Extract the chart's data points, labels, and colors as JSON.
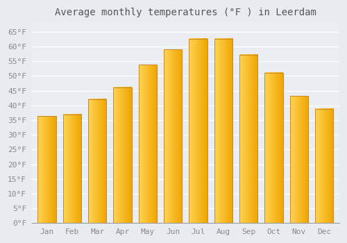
{
  "title": "Average monthly temperatures (°F ) in Leerdam",
  "months": [
    "Jan",
    "Feb",
    "Mar",
    "Apr",
    "May",
    "Jun",
    "Jul",
    "Aug",
    "Sep",
    "Oct",
    "Nov",
    "Dec"
  ],
  "values": [
    36.3,
    37.0,
    42.1,
    46.2,
    53.8,
    59.0,
    62.6,
    62.6,
    57.2,
    51.1,
    43.2,
    38.8
  ],
  "bar_color_left": "#FFD454",
  "bar_color_right": "#F0A500",
  "bar_edge_color": "#C8882A",
  "background_color": "#E8ECF0",
  "plot_bg_color": "#EAEEF2",
  "grid_color": "#FFFFFF",
  "title_fontsize": 10,
  "tick_label_fontsize": 8,
  "ylim": [
    0,
    68
  ],
  "ytick_step": 5
}
